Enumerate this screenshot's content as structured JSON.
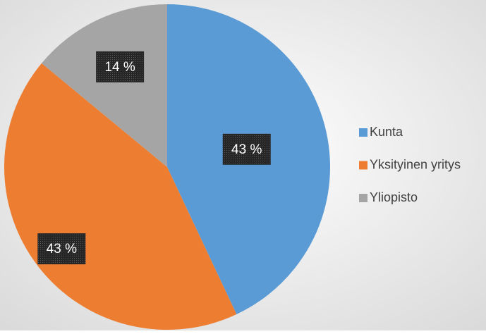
{
  "chart_data": {
    "type": "pie",
    "categories": [
      "Kunta",
      "Yksityinen yritys",
      "Yliopisto"
    ],
    "values": [
      43,
      43,
      14
    ],
    "value_labels": [
      "43 %",
      "43 %",
      "14 %"
    ],
    "colors": [
      "#5b9bd5",
      "#ed7d31",
      "#a5a5a5"
    ],
    "legend": "right"
  }
}
